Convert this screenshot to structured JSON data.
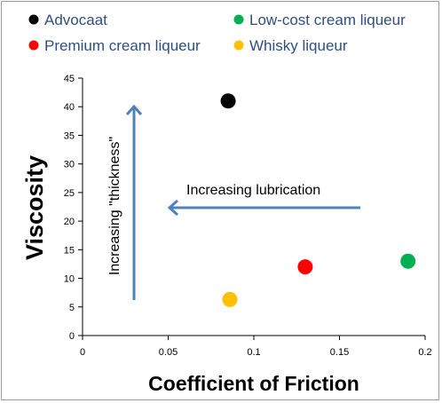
{
  "chart_data": {
    "type": "scatter",
    "title": "",
    "xlabel": "Coefficient of Friction",
    "ylabel": "Viscosity",
    "xlim": [
      0,
      0.2
    ],
    "ylim": [
      0,
      45
    ],
    "x_ticks": [
      0,
      0.05,
      0.1,
      0.15,
      0.2
    ],
    "x_tick_labels": [
      "0",
      "0.05",
      "0.1",
      "0.15",
      "0.2"
    ],
    "y_ticks": [
      0,
      5,
      10,
      15,
      20,
      25,
      30,
      35,
      40,
      45
    ],
    "grid": false,
    "legend_position": "top",
    "series": [
      {
        "name": "Advocaat",
        "color": "#000000",
        "points": [
          {
            "x": 0.085,
            "y": 41
          }
        ]
      },
      {
        "name": "Low-cost cream liqueur",
        "color": "#00b050",
        "points": [
          {
            "x": 0.19,
            "y": 13
          }
        ]
      },
      {
        "name": "Premium cream liqueur",
        "color": "#ff0000",
        "points": [
          {
            "x": 0.13,
            "y": 12
          }
        ]
      },
      {
        "name": "Whisky liqueur",
        "color": "#ffc000",
        "points": [
          {
            "x": 0.086,
            "y": 6.3
          }
        ]
      }
    ],
    "annotations": [
      {
        "text": "Increasing lubrication",
        "arrow": "left"
      },
      {
        "text": "Increasing \"thickness\"",
        "arrow": "up"
      }
    ],
    "arrow_color": "#4f81bd"
  }
}
